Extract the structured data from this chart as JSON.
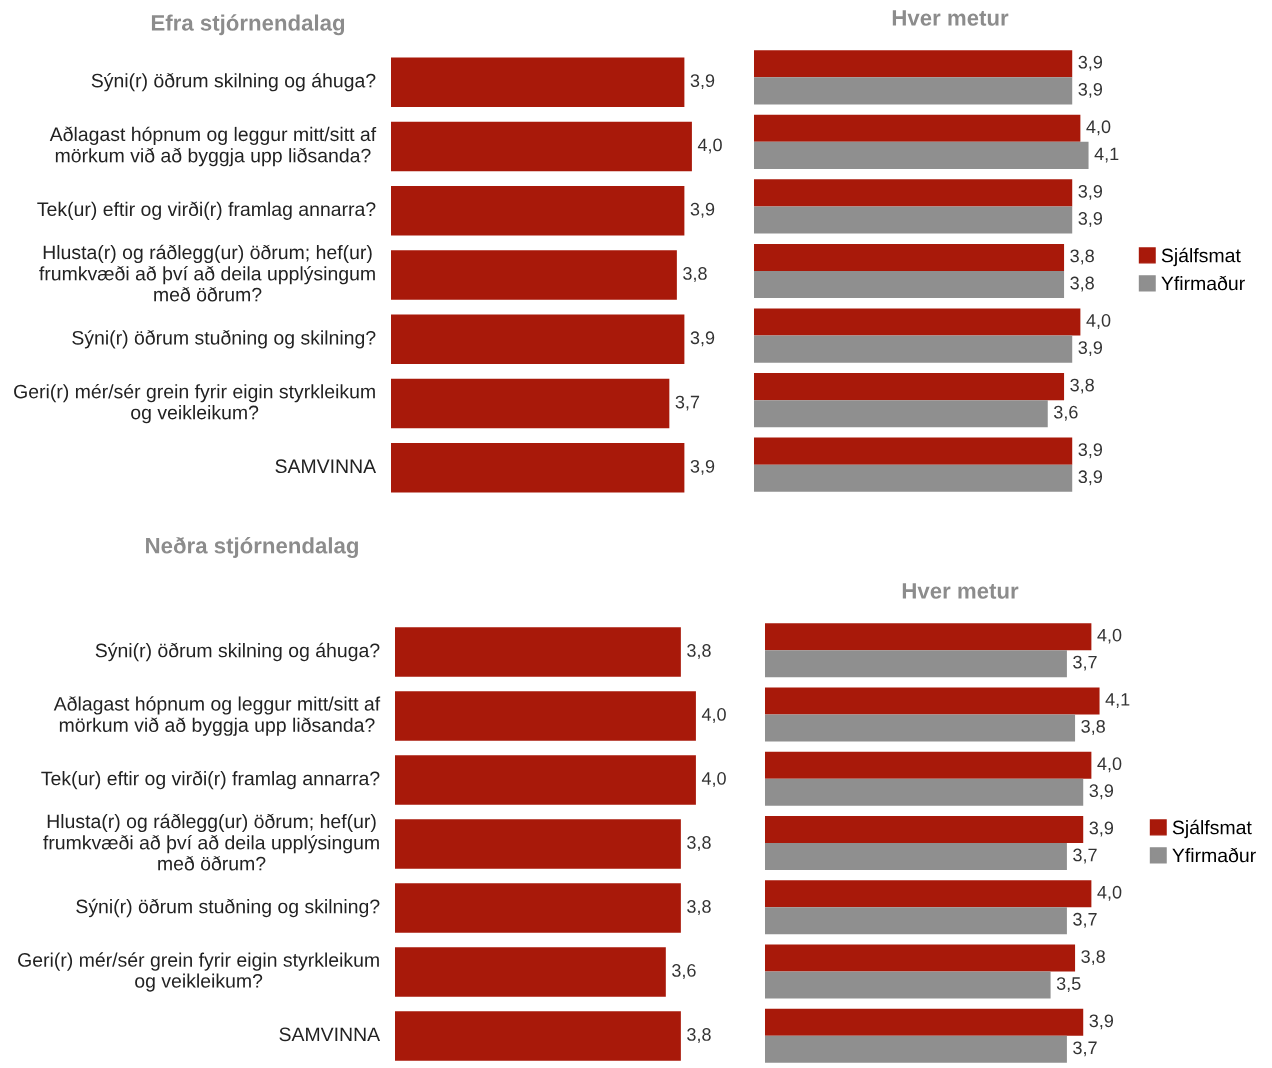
{
  "chart_data": [
    {
      "type": "bar",
      "orientation": "horizontal",
      "title": "Efra stjórnendalag",
      "categories": [
        "Sýni(r) öðrum skilning og áhuga?",
        "Aðlagast hópnum og leggur mitt/sitt af mörkum við að byggja upp liðsanda?",
        "Tek(ur) eftir og virði(r) framlag annarra?",
        "Hlusta(r) og ráðlegg(ur) öðrum; hef(ur) frumkvæði að því að deila upplýsingum með öðrum?",
        "Sýni(r) öðrum stuðning og skilning?",
        "Geri(r) mér/sér grein fyrir eigin styrkleikum og veikleikum?",
        "SAMVINNA"
      ],
      "series": [
        {
          "color": "#a8190a",
          "values": [
            3.9,
            4.0,
            3.9,
            3.8,
            3.9,
            3.7,
            3.9
          ],
          "value_labels": [
            "3,9",
            "4,0",
            "3,9",
            "3,8",
            "3,9",
            "3,7",
            "3,9"
          ]
        }
      ],
      "tick_labels": "y",
      "grid": false,
      "legend": false
    },
    {
      "type": "bar",
      "orientation": "horizontal",
      "title": "Hver metur",
      "categories": [
        null,
        null,
        null,
        null,
        null,
        null,
        null
      ],
      "series": [
        {
          "name": "Sjálfsmat",
          "color": "#a8190a",
          "values": [
            3.9,
            4.0,
            3.9,
            3.8,
            4.0,
            3.8,
            3.9
          ],
          "value_labels": [
            "3,9",
            "4,0",
            "3,9",
            "3,8",
            "4,0",
            "3,8",
            "3,9"
          ]
        },
        {
          "name": "Yfirmaður",
          "color": "#8f8f8f",
          "values": [
            3.9,
            4.1,
            3.9,
            3.8,
            3.9,
            3.6,
            3.9
          ],
          "value_labels": [
            "3,9",
            "4,1",
            "3,9",
            "3,8",
            "3,9",
            "3,6",
            "3,9"
          ]
        }
      ],
      "tick_labels": false,
      "grid": false,
      "legend": "right"
    },
    {
      "type": "bar",
      "orientation": "horizontal",
      "title": "Neðra stjórnendalag",
      "categories": [
        "Sýni(r) öðrum skilning og áhuga?",
        "Aðlagast hópnum og leggur mitt/sitt af mörkum við að byggja upp liðsanda?",
        "Tek(ur) eftir og virði(r) framlag annarra?",
        "Hlusta(r) og ráðlegg(ur) öðrum; hef(ur) frumkvæði að því að deila upplýsingum með öðrum?",
        "Sýni(r) öðrum stuðning og skilning?",
        "Geri(r) mér/sér grein fyrir eigin styrkleikum og veikleikum?",
        "SAMVINNA"
      ],
      "series": [
        {
          "color": "#a8190a",
          "values": [
            3.8,
            4.0,
            4.0,
            3.8,
            3.8,
            3.6,
            3.8
          ],
          "value_labels": [
            "3,8",
            "4,0",
            "4,0",
            "3,8",
            "3,8",
            "3,6",
            "3,8"
          ]
        }
      ],
      "tick_labels": "y",
      "grid": false,
      "legend": false
    },
    {
      "type": "bar",
      "orientation": "horizontal",
      "title": "Hver metur",
      "categories": [
        null,
        null,
        null,
        null,
        null,
        null,
        null
      ],
      "series": [
        {
          "name": "Sjálfsmat",
          "color": "#a8190a",
          "values": [
            4.0,
            4.1,
            4.0,
            3.9,
            4.0,
            3.8,
            3.9
          ],
          "value_labels": [
            "4,0",
            "4,1",
            "4,0",
            "3,9",
            "4,0",
            "3,8",
            "3,9"
          ]
        },
        {
          "name": "Yfirmaður",
          "color": "#8f8f8f",
          "values": [
            3.7,
            3.8,
            3.9,
            3.7,
            3.7,
            3.5,
            3.7
          ],
          "value_labels": [
            "3,7",
            "3,8",
            "3,9",
            "3,7",
            "3,7",
            "3,5",
            "3,7"
          ]
        }
      ],
      "tick_labels": false,
      "grid": false,
      "legend": "right"
    }
  ]
}
